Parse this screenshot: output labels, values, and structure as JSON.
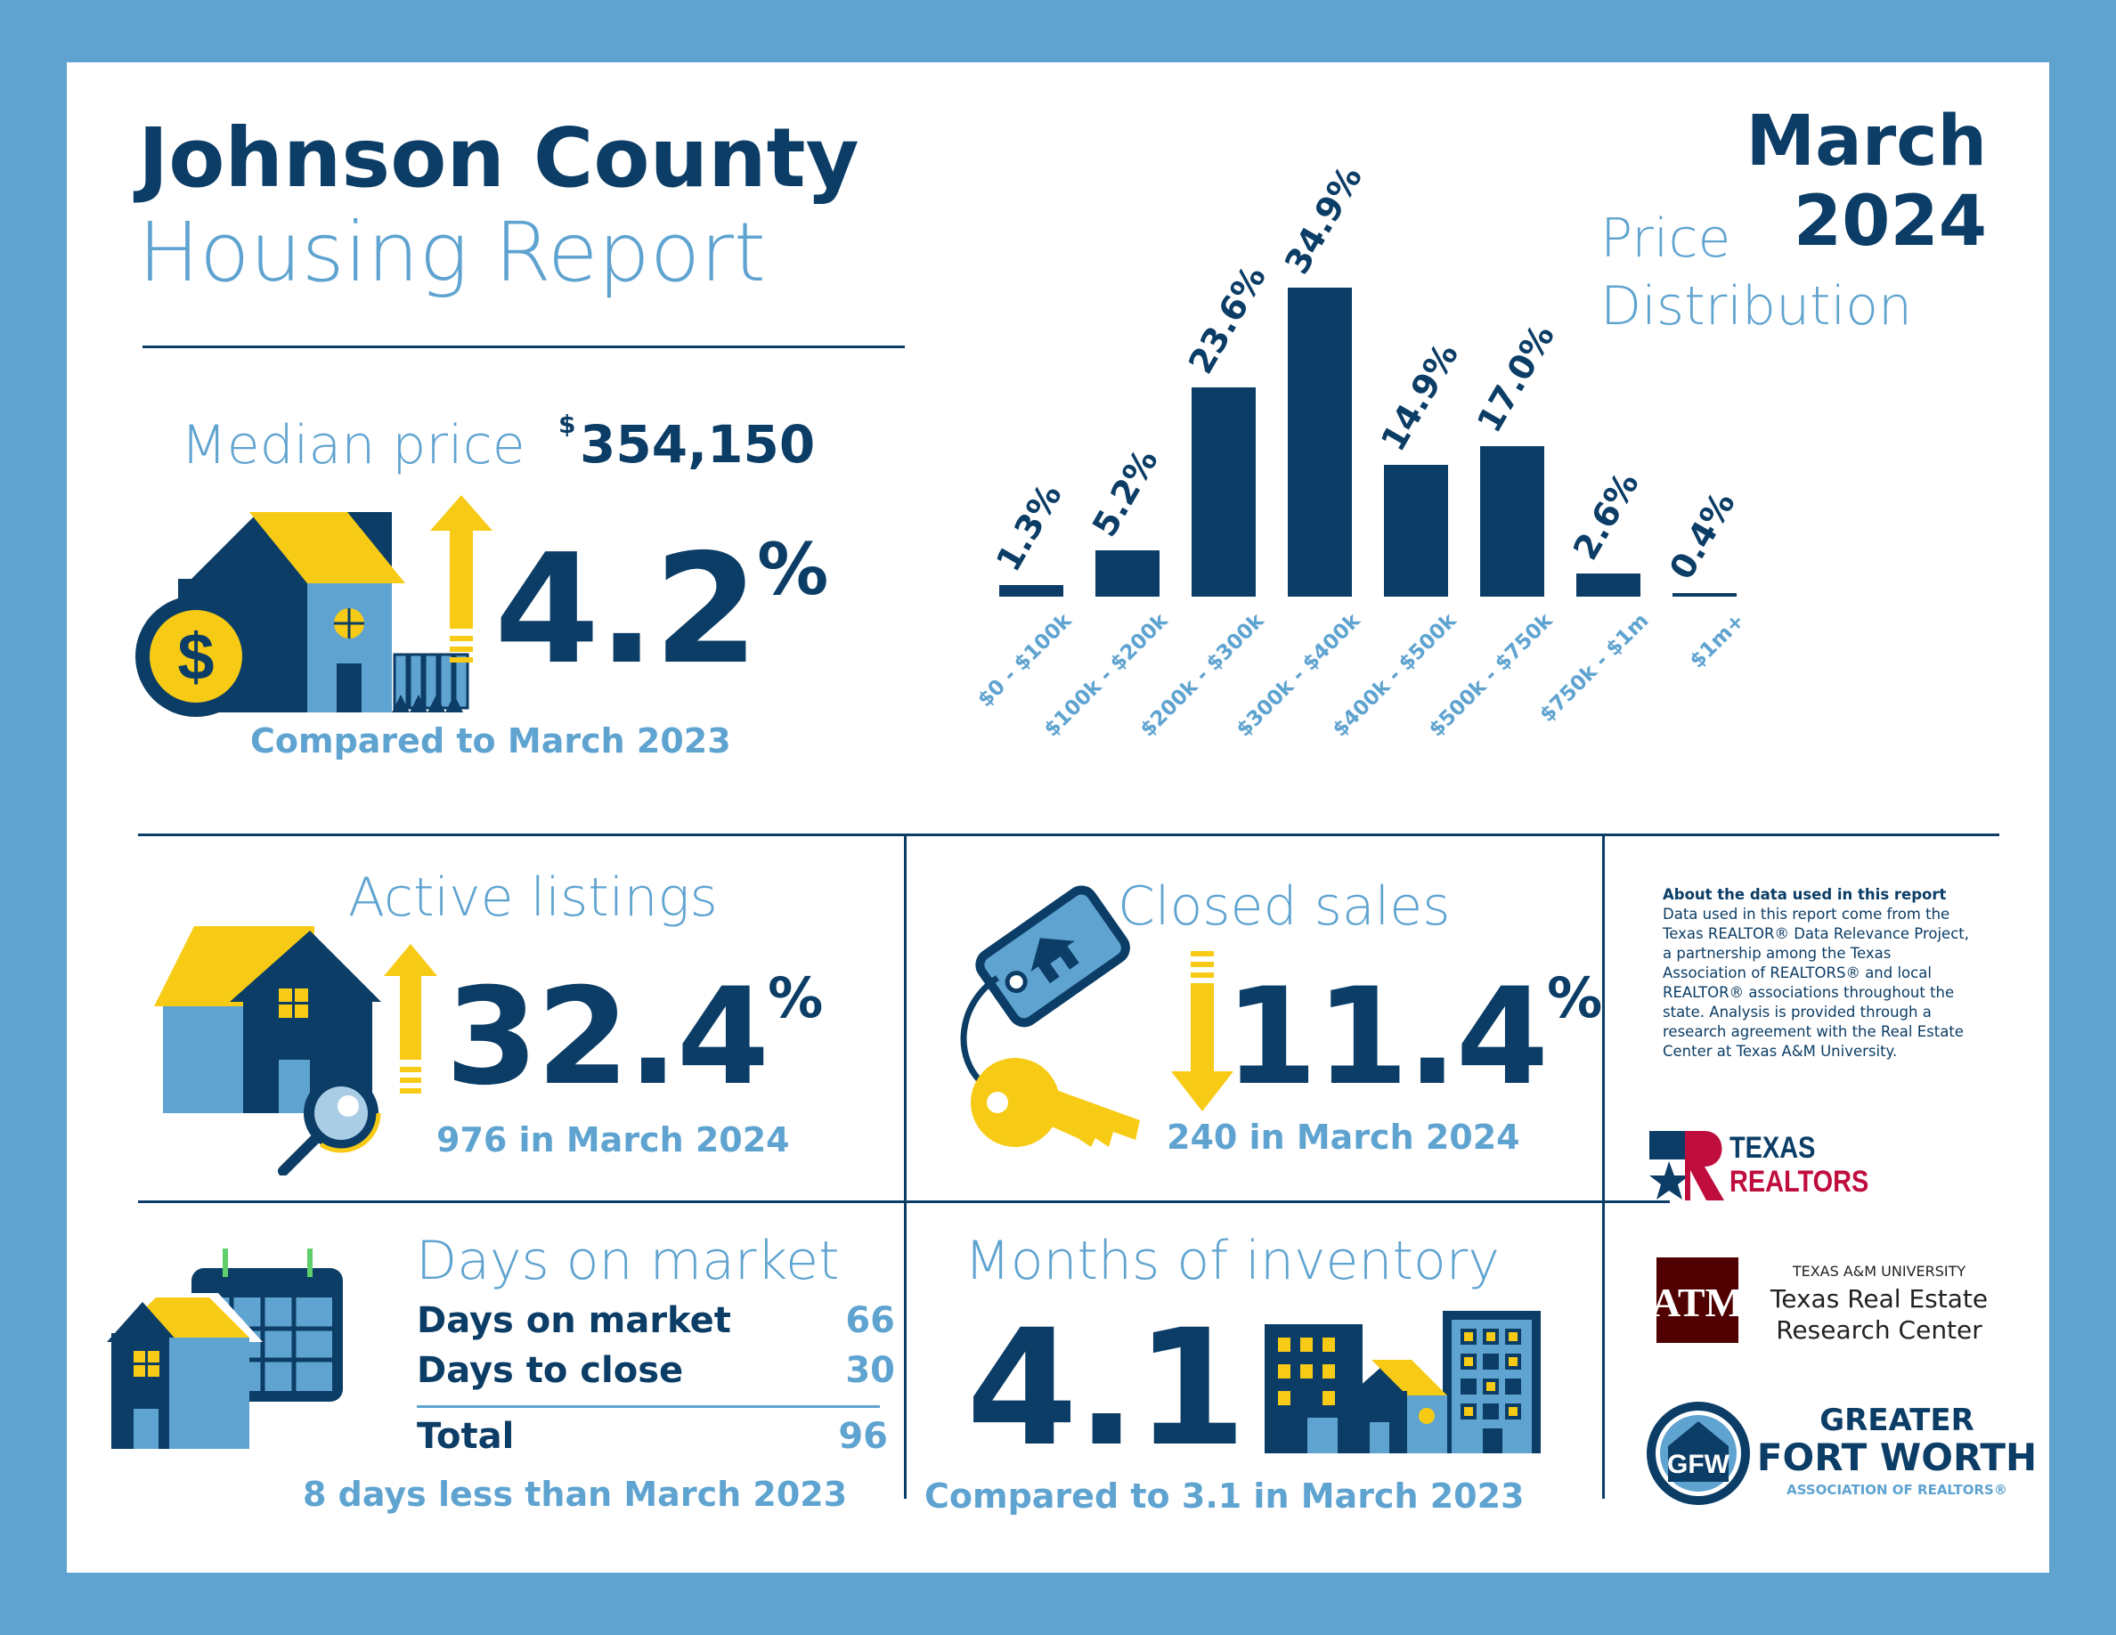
{
  "title": {
    "line1": "Johnson County",
    "line2": "Housing Report"
  },
  "period": {
    "month": "March",
    "year": "2024"
  },
  "price_distribution_label": {
    "line1": "Price",
    "line2": "Distribution"
  },
  "median": {
    "label": "Median price",
    "currency": "$",
    "value": "354,150",
    "change": "4.2",
    "pct_sign": "%",
    "direction": "up",
    "comparison": "Compared to March 2023"
  },
  "active": {
    "label": "Active listings",
    "change": "32.4",
    "pct_sign": "%",
    "direction": "up",
    "sub": "976 in March 2024"
  },
  "closed": {
    "label": "Closed sales",
    "change": "11.4",
    "pct_sign": "%",
    "direction": "down",
    "sub": "240 in March 2024"
  },
  "dom": {
    "label": "Days on market",
    "rows": [
      {
        "label": "Days on market",
        "value": "66"
      },
      {
        "label": "Days to close",
        "value": "30"
      }
    ],
    "total_label": "Total",
    "total_value": "96",
    "sub": "8 days less than March 2023"
  },
  "inventory": {
    "label": "Months of inventory",
    "value": "4.1",
    "sub": "Compared to 3.1 in March 2023"
  },
  "about": {
    "heading": "About the data used in this report",
    "lines": [
      "Data used in this report come from the",
      "Texas REALTOR® Data Relevance Project,",
      "a partnership among the Texas",
      "Association of REALTORS® and local",
      "REALTOR® associations throughout the",
      "state. Analysis is provided through a",
      "research agreement with the Real Estate",
      "Center at Texas A&M University."
    ]
  },
  "logos": {
    "texas_realtors": {
      "line1": "TEXAS",
      "line2": "REALTORS"
    },
    "tamu": {
      "line1": "TEXAS A&M UNIVERSITY",
      "line2": "Texas Real Estate",
      "line3": "Research Center"
    },
    "gfw": {
      "line1": "GREATER",
      "line2": "FORT WORTH",
      "line3": "ASSOCIATION OF REALTORS®"
    }
  },
  "chart_data": {
    "type": "bar",
    "categories": [
      "$0 - $100k",
      "$100k - $200k",
      "$200k - $300k",
      "$300k - $400k",
      "$400k - $500k",
      "$500k - $750k",
      "$750k - $1m",
      "$1m+"
    ],
    "values": [
      1.3,
      5.2,
      23.6,
      34.9,
      14.9,
      17.0,
      2.6,
      0.4
    ],
    "labels": [
      "1.3%",
      "5.2%",
      "23.6%",
      "34.9%",
      "14.9%",
      "17.0%",
      "2.6%",
      "0.4%"
    ],
    "ylim": [
      0,
      34.9
    ]
  },
  "colors": {
    "navy": "#0b3d66",
    "light_blue": "#5fa3d0",
    "yellow": "#f7cb15",
    "maroon": "#500000",
    "red": "#bf0d3e"
  }
}
